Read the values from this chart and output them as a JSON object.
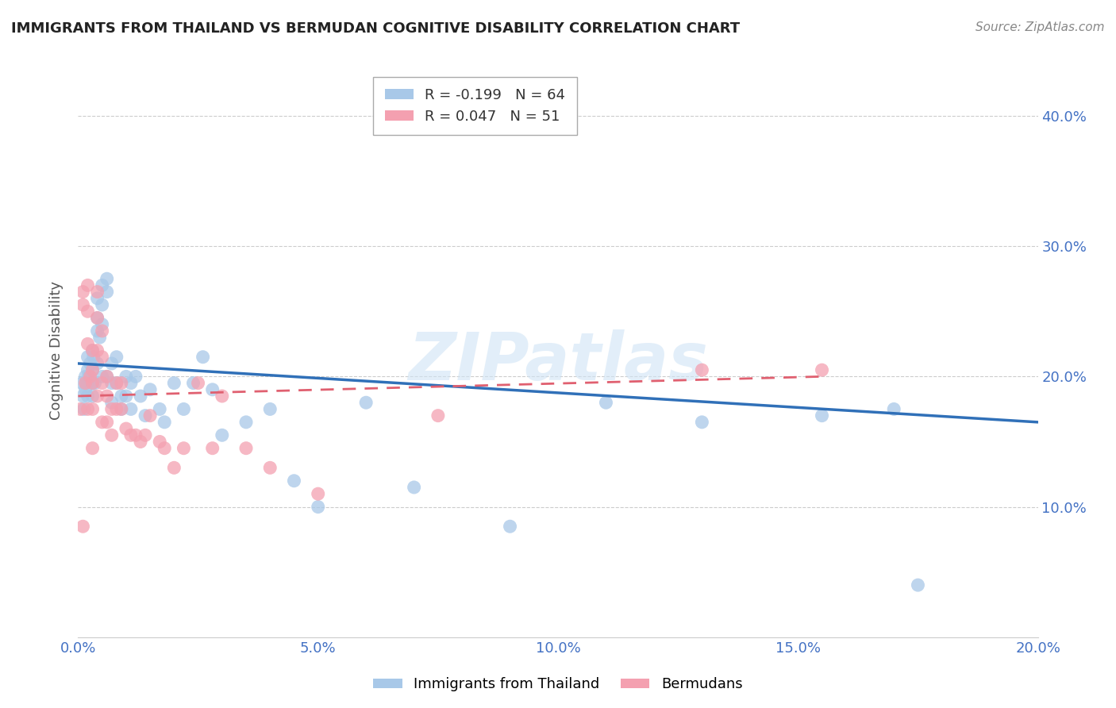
{
  "title": "IMMIGRANTS FROM THAILAND VS BERMUDAN COGNITIVE DISABILITY CORRELATION CHART",
  "source": "Source: ZipAtlas.com",
  "ylabel": "Cognitive Disability",
  "xlim": [
    0.0,
    0.2
  ],
  "ylim": [
    0.0,
    0.44
  ],
  "xticks": [
    0.0,
    0.05,
    0.1,
    0.15,
    0.2
  ],
  "xtick_labels": [
    "0.0%",
    "5.0%",
    "10.0%",
    "15.0%",
    "20.0%"
  ],
  "yticks": [
    0.1,
    0.2,
    0.3,
    0.4
  ],
  "ytick_labels": [
    "10.0%",
    "20.0%",
    "30.0%",
    "40.0%"
  ],
  "legend1_label": "R = -0.199   N = 64",
  "legend2_label": "R = 0.047   N = 51",
  "legend_xlabel1": "Immigrants from Thailand",
  "legend_xlabel2": "Bermudans",
  "color_blue": "#a8c8e8",
  "color_pink": "#f4a0b0",
  "trendline_blue_color": "#3070b8",
  "trendline_pink_color": "#e06070",
  "blue_x": [
    0.0008,
    0.001,
    0.0012,
    0.0015,
    0.0015,
    0.0018,
    0.002,
    0.002,
    0.002,
    0.0022,
    0.0025,
    0.003,
    0.003,
    0.003,
    0.003,
    0.0032,
    0.0035,
    0.004,
    0.004,
    0.004,
    0.004,
    0.0045,
    0.005,
    0.005,
    0.005,
    0.005,
    0.006,
    0.006,
    0.006,
    0.007,
    0.007,
    0.007,
    0.008,
    0.008,
    0.009,
    0.009,
    0.01,
    0.01,
    0.011,
    0.011,
    0.012,
    0.013,
    0.014,
    0.015,
    0.017,
    0.018,
    0.02,
    0.022,
    0.024,
    0.026,
    0.028,
    0.03,
    0.035,
    0.04,
    0.045,
    0.05,
    0.06,
    0.07,
    0.09,
    0.11,
    0.13,
    0.155,
    0.17,
    0.175
  ],
  "blue_y": [
    0.195,
    0.185,
    0.175,
    0.2,
    0.19,
    0.195,
    0.215,
    0.205,
    0.185,
    0.2,
    0.21,
    0.22,
    0.205,
    0.195,
    0.185,
    0.215,
    0.195,
    0.245,
    0.235,
    0.26,
    0.21,
    0.23,
    0.27,
    0.255,
    0.24,
    0.2,
    0.275,
    0.265,
    0.2,
    0.21,
    0.195,
    0.18,
    0.215,
    0.195,
    0.185,
    0.175,
    0.2,
    0.185,
    0.195,
    0.175,
    0.2,
    0.185,
    0.17,
    0.19,
    0.175,
    0.165,
    0.195,
    0.175,
    0.195,
    0.215,
    0.19,
    0.155,
    0.165,
    0.175,
    0.12,
    0.1,
    0.18,
    0.115,
    0.085,
    0.18,
    0.165,
    0.17,
    0.175,
    0.04
  ],
  "pink_x": [
    0.0005,
    0.001,
    0.001,
    0.001,
    0.0015,
    0.002,
    0.002,
    0.002,
    0.002,
    0.0025,
    0.003,
    0.003,
    0.003,
    0.003,
    0.003,
    0.004,
    0.004,
    0.004,
    0.004,
    0.005,
    0.005,
    0.005,
    0.005,
    0.006,
    0.006,
    0.006,
    0.007,
    0.007,
    0.008,
    0.008,
    0.009,
    0.009,
    0.01,
    0.011,
    0.012,
    0.013,
    0.014,
    0.015,
    0.017,
    0.018,
    0.02,
    0.022,
    0.025,
    0.028,
    0.03,
    0.035,
    0.04,
    0.05,
    0.075,
    0.13,
    0.155
  ],
  "pink_y": [
    0.175,
    0.265,
    0.255,
    0.085,
    0.195,
    0.27,
    0.25,
    0.225,
    0.175,
    0.2,
    0.22,
    0.205,
    0.195,
    0.175,
    0.145,
    0.265,
    0.245,
    0.22,
    0.185,
    0.235,
    0.215,
    0.195,
    0.165,
    0.2,
    0.185,
    0.165,
    0.175,
    0.155,
    0.195,
    0.175,
    0.195,
    0.175,
    0.16,
    0.155,
    0.155,
    0.15,
    0.155,
    0.17,
    0.15,
    0.145,
    0.13,
    0.145,
    0.195,
    0.145,
    0.185,
    0.145,
    0.13,
    0.11,
    0.17,
    0.205,
    0.205
  ],
  "blue_trend_x": [
    0.0,
    0.2
  ],
  "blue_trend_y": [
    0.21,
    0.165
  ],
  "pink_trend_x": [
    0.0,
    0.155
  ],
  "pink_trend_y": [
    0.185,
    0.2
  ],
  "watermark": "ZIPatlas",
  "background_color": "#ffffff",
  "grid_color": "#cccccc"
}
